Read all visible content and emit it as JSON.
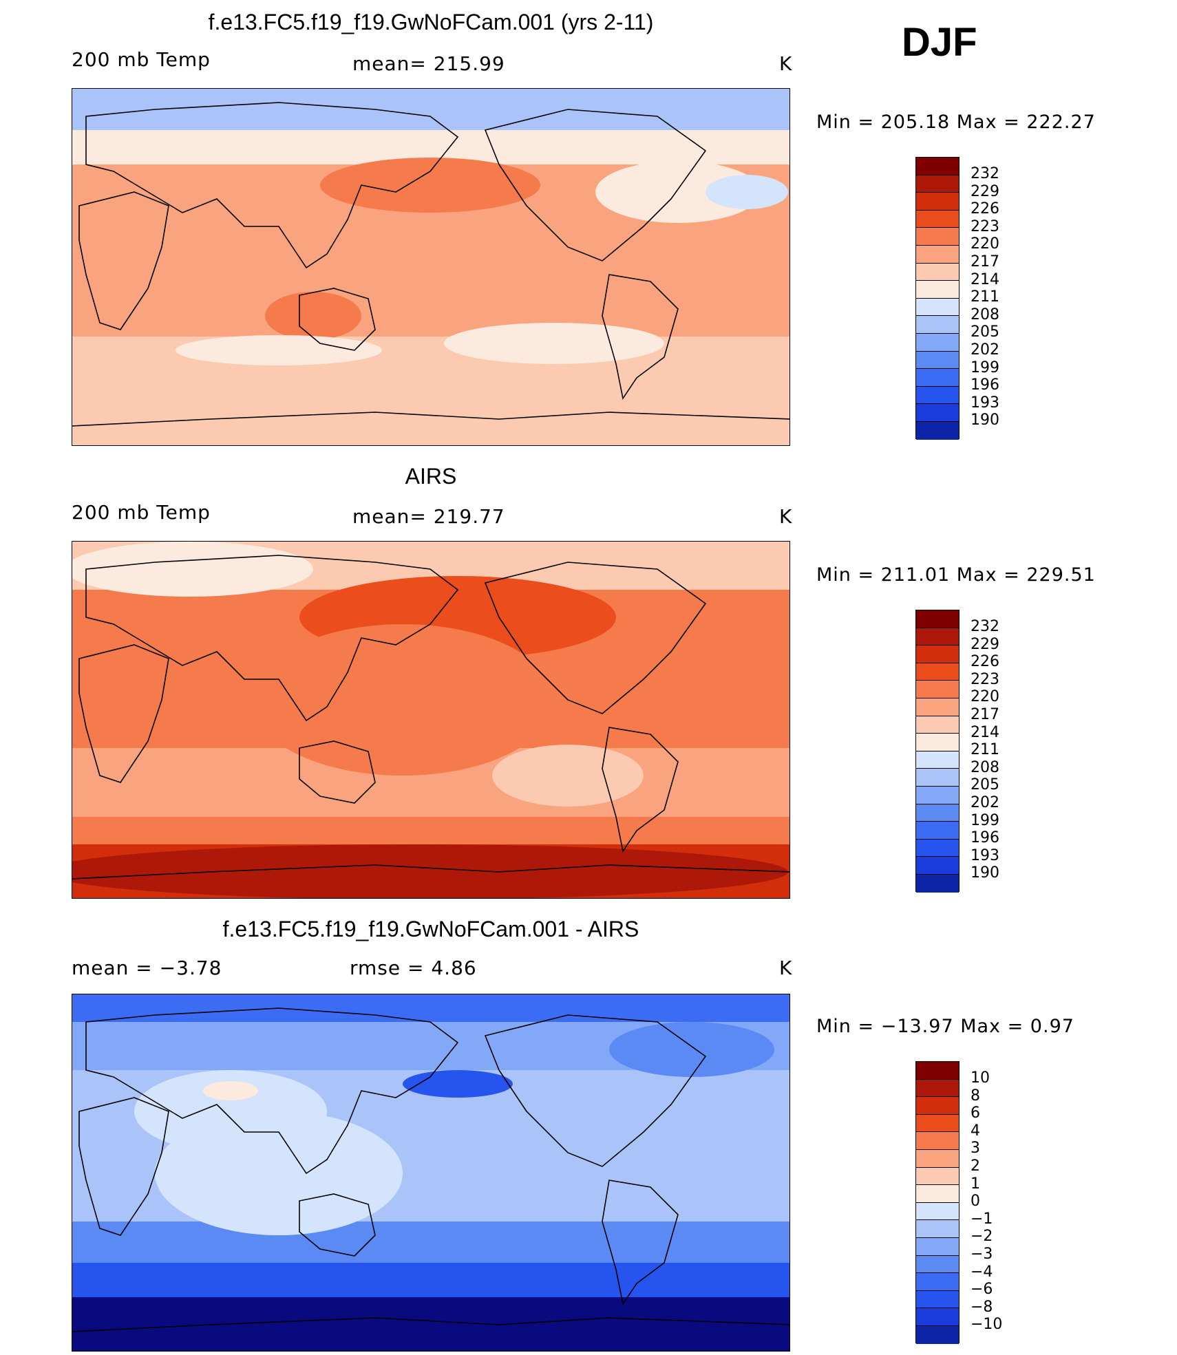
{
  "season": "DJF",
  "colors": {
    "temp_scale": [
      "#0a0a80",
      "#0c24a8",
      "#1a3cdc",
      "#2654ee",
      "#3c6cf4",
      "#5c8af4",
      "#84a8f8",
      "#aac4fa",
      "#d4e4fc",
      "#fdeade",
      "#fbcab0",
      "#f9a47e",
      "#f57a4c",
      "#eb4e1c",
      "#d22e0c",
      "#ad1808",
      "#800000"
    ],
    "diff_scale": [
      "#0a0a80",
      "#0c24a8",
      "#1a3cdc",
      "#2654ee",
      "#3c6cf4",
      "#5c8af4",
      "#84a8f8",
      "#aac4fa",
      "#d4e4fc",
      "#fdeade",
      "#fbcab0",
      "#f9a47e",
      "#f57a4c",
      "#eb4e1c",
      "#d22e0c",
      "#ad1808",
      "#800000"
    ],
    "coast": "#000000"
  },
  "panels": [
    {
      "title": "f.e13.FC5.f19_f19.GwNoFCam.001 (yrs 2-11)",
      "left_label": "200 mb Temp",
      "center_label": "mean= 215.99",
      "unit": "K",
      "minmax": "Min = 205.18 Max = 222.27",
      "colorbar_labels": [
        "232",
        "229",
        "226",
        "223",
        "220",
        "217",
        "214",
        "211",
        "208",
        "205",
        "202",
        "199",
        "196",
        "193",
        "190"
      ],
      "field": "model"
    },
    {
      "title": "AIRS",
      "left_label": "200 mb Temp",
      "center_label": "mean= 219.77",
      "unit": "K",
      "minmax": "Min = 211.01 Max = 229.51",
      "colorbar_labels": [
        "232",
        "229",
        "226",
        "223",
        "220",
        "217",
        "214",
        "211",
        "208",
        "205",
        "202",
        "199",
        "196",
        "193",
        "190"
      ],
      "field": "obs"
    },
    {
      "title": "f.e13.FC5.f19_f19.GwNoFCam.001 - AIRS",
      "left_label": "mean =   −3.78",
      "center_label": "rmse =    4.86",
      "unit": "K",
      "minmax": "Min = −13.97 Max =    0.97",
      "colorbar_labels": [
        "10",
        "8",
        "6",
        "4",
        "3",
        "2",
        "1",
        "0",
        "−1",
        "−2",
        "−3",
        "−4",
        "−6",
        "−8",
        "−10"
      ],
      "field": "diff"
    }
  ]
}
